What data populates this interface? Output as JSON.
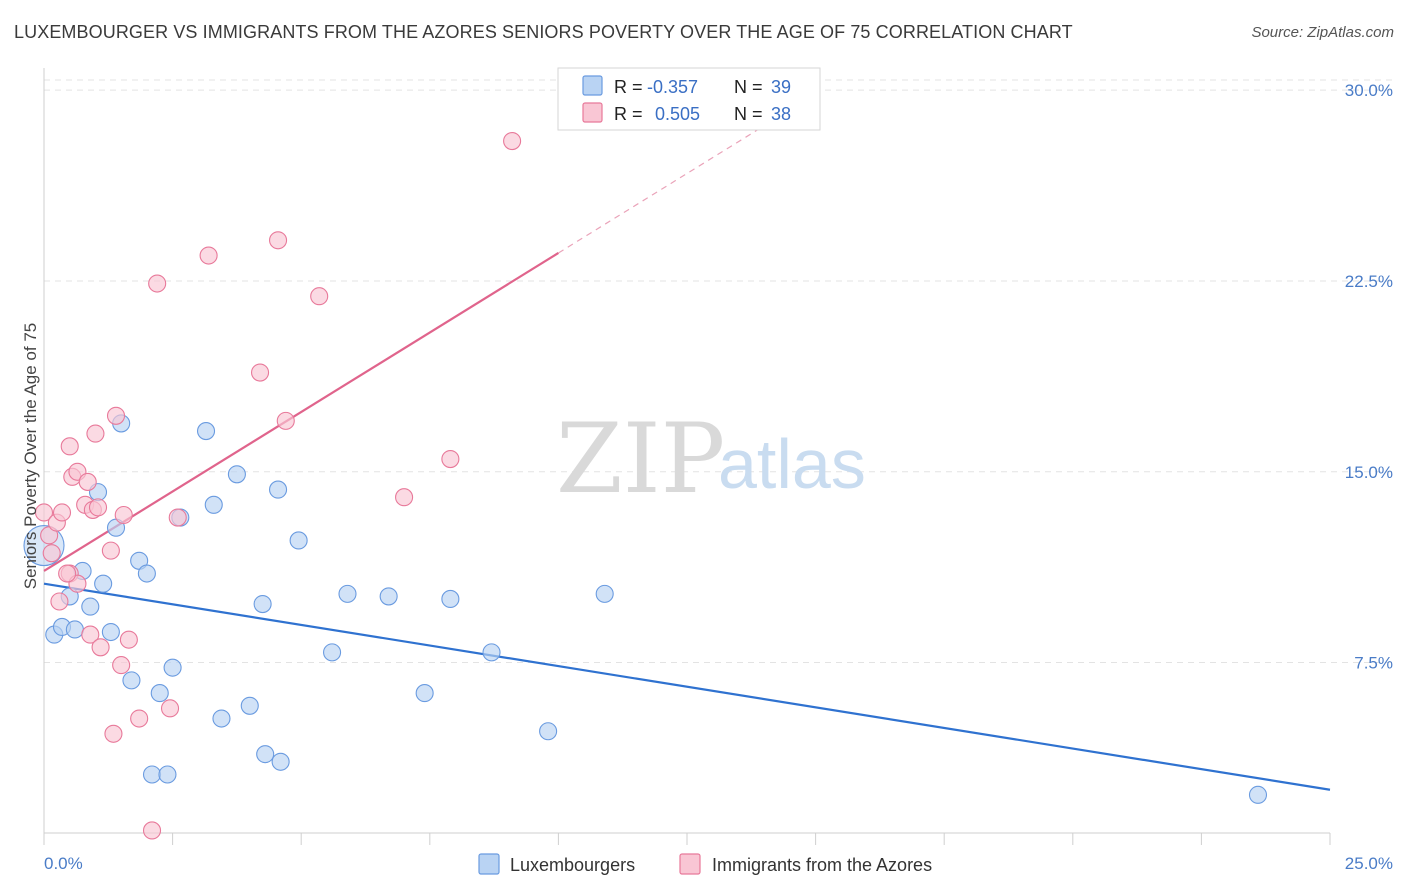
{
  "title": "LUXEMBOURGER VS IMMIGRANTS FROM THE AZORES SENIORS POVERTY OVER THE AGE OF 75 CORRELATION CHART",
  "source": "Source: ZipAtlas.com",
  "watermark": {
    "zip": "ZIP",
    "atlas": "atlas"
  },
  "legend_stats": [
    {
      "r_label": "R =",
      "r_value": "-0.357",
      "n_label": "N =",
      "n_value": "39",
      "color": "#a9c8f0"
    },
    {
      "r_label": "R =",
      "r_value": "0.505",
      "n_label": "N =",
      "n_value": "38",
      "color": "#f8b8cb"
    }
  ],
  "chart_data": {
    "type": "scatter",
    "title": "LUXEMBOURGER VS IMMIGRANTS FROM THE AZORES SENIORS POVERTY OVER THE AGE OF 75 CORRELATION CHART",
    "xlabel": "",
    "ylabel": "Seniors Poverty Over the Age of 75",
    "xlim": [
      0,
      25
    ],
    "ylim": [
      0.8,
      30.4
    ],
    "x_tick_labels": [
      "0.0%",
      "25.0%"
    ],
    "y_ticks": [
      7.5,
      15.0,
      22.5,
      30.0
    ],
    "y_tick_labels": [
      "7.5%",
      "15.0%",
      "22.5%",
      "30.0%"
    ],
    "grid": true,
    "legend_position": "bottom",
    "series": [
      {
        "name": "Luxembourgers",
        "color": "#6a9be0",
        "fill": "#b9d3f3",
        "trend": {
          "x": [
            0,
            25
          ],
          "y": [
            10.6,
            2.5
          ]
        },
        "points": [
          [
            0.0,
            12.1
          ],
          [
            0.2,
            8.6
          ],
          [
            0.35,
            8.9
          ],
          [
            0.5,
            10.1
          ],
          [
            0.6,
            8.8
          ],
          [
            0.75,
            11.1
          ],
          [
            0.9,
            9.7
          ],
          [
            1.15,
            10.6
          ],
          [
            1.3,
            8.7
          ],
          [
            1.4,
            12.8
          ],
          [
            1.5,
            16.9
          ],
          [
            1.7,
            6.8
          ],
          [
            1.85,
            11.5
          ],
          [
            2.0,
            11.0
          ],
          [
            2.1,
            3.1
          ],
          [
            2.25,
            6.3
          ],
          [
            2.4,
            3.1
          ],
          [
            2.5,
            7.3
          ],
          [
            2.65,
            13.2
          ],
          [
            3.15,
            16.6
          ],
          [
            3.3,
            13.7
          ],
          [
            3.45,
            5.3
          ],
          [
            3.75,
            14.9
          ],
          [
            4.0,
            5.8
          ],
          [
            4.25,
            9.8
          ],
          [
            4.3,
            3.9
          ],
          [
            4.55,
            14.3
          ],
          [
            4.6,
            3.6
          ],
          [
            4.95,
            12.3
          ],
          [
            5.6,
            7.9
          ],
          [
            5.9,
            10.2
          ],
          [
            6.7,
            10.1
          ],
          [
            7.4,
            6.3
          ],
          [
            7.9,
            10.0
          ],
          [
            8.7,
            7.9
          ],
          [
            9.8,
            4.8
          ],
          [
            10.9,
            10.2
          ],
          [
            1.05,
            14.2
          ],
          [
            23.6,
            2.3
          ]
        ]
      },
      {
        "name": "Immigrants from the Azores",
        "color": "#e8799a",
        "fill": "#f9c6d4",
        "trend": {
          "x": [
            0,
            10
          ],
          "y": [
            11.1,
            23.6
          ]
        },
        "trend_dashed": {
          "x": [
            10,
            14
          ],
          "y": [
            23.6,
            28.6
          ]
        },
        "points": [
          [
            0.0,
            13.4
          ],
          [
            0.1,
            12.5
          ],
          [
            0.15,
            11.8
          ],
          [
            0.25,
            13.0
          ],
          [
            0.3,
            9.9
          ],
          [
            0.35,
            13.4
          ],
          [
            0.5,
            11.0
          ],
          [
            0.5,
            16.0
          ],
          [
            0.55,
            14.8
          ],
          [
            0.65,
            10.6
          ],
          [
            0.65,
            15.0
          ],
          [
            0.8,
            13.7
          ],
          [
            0.85,
            14.6
          ],
          [
            0.9,
            8.6
          ],
          [
            0.95,
            13.5
          ],
          [
            1.0,
            16.5
          ],
          [
            1.05,
            13.6
          ],
          [
            1.1,
            8.1
          ],
          [
            1.3,
            11.9
          ],
          [
            1.35,
            4.7
          ],
          [
            1.4,
            17.2
          ],
          [
            1.5,
            7.4
          ],
          [
            1.55,
            13.3
          ],
          [
            1.65,
            8.4
          ],
          [
            1.85,
            5.3
          ],
          [
            2.1,
            0.9
          ],
          [
            2.2,
            22.4
          ],
          [
            2.45,
            5.7
          ],
          [
            2.6,
            13.2
          ],
          [
            3.2,
            23.5
          ],
          [
            4.2,
            18.9
          ],
          [
            4.55,
            24.1
          ],
          [
            4.7,
            17.0
          ],
          [
            5.35,
            21.9
          ],
          [
            7.0,
            14.0
          ],
          [
            7.9,
            15.5
          ],
          [
            9.1,
            28.0
          ],
          [
            0.45,
            11.0
          ]
        ]
      }
    ]
  },
  "bottom_legend": [
    {
      "label": "Luxembourgers",
      "color": "#b9d3f3",
      "stroke": "#6a9be0"
    },
    {
      "label": "Immigrants from the Azores",
      "color": "#f9c6d4",
      "stroke": "#e8799a"
    }
  ]
}
